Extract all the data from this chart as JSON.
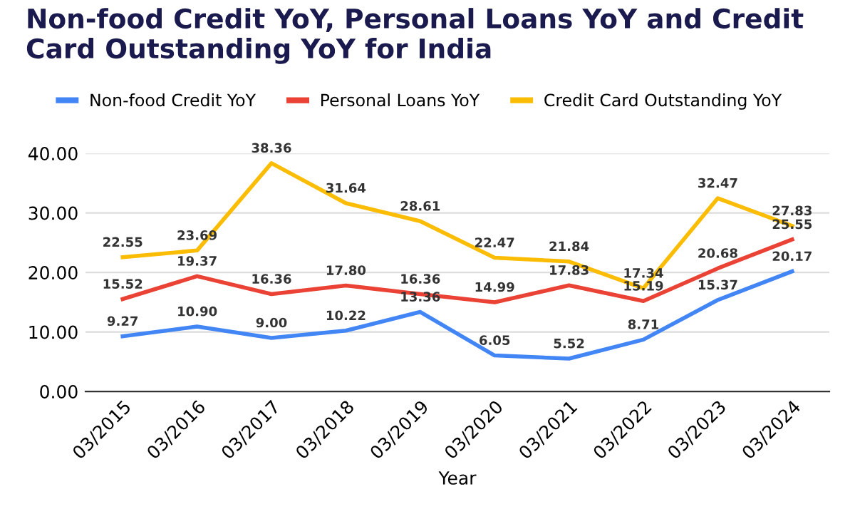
{
  "chart_data": {
    "type": "line",
    "title": "Non-food Credit YoY, Personal Loans YoY and Credit Card Outstanding YoY for India",
    "xlabel": "Year",
    "categories": [
      "03/2015",
      "03/2016",
      "03/2017",
      "03/2018",
      "03/2019",
      "03/2020",
      "03/2021",
      "03/2022",
      "03/2023",
      "03/2024"
    ],
    "series": [
      {
        "name": "Non-food Credit YoY",
        "color": "#4285f4",
        "values": [
          9.27,
          10.9,
          9.0,
          10.22,
          13.36,
          6.05,
          5.52,
          8.71,
          15.37,
          20.17
        ],
        "value_labels": [
          "9.27",
          "10.90",
          "9.00",
          "10.22",
          "13.36",
          "6.05",
          "5.52",
          "8.71",
          "15.37",
          "20.17"
        ]
      },
      {
        "name": "Personal Loans YoY",
        "color": "#ea4335",
        "values": [
          15.52,
          19.37,
          16.36,
          17.8,
          16.36,
          14.99,
          17.83,
          15.19,
          20.68,
          25.55
        ],
        "value_labels": [
          "15.52",
          "19.37",
          "16.36",
          "17.80",
          "16.36",
          "14.99",
          "17.83",
          "15.19",
          "20.68",
          "25.55"
        ]
      },
      {
        "name": "Credit Card Outstanding YoY",
        "color": "#fbbc04",
        "values": [
          22.55,
          23.69,
          38.36,
          31.64,
          28.61,
          22.47,
          21.84,
          17.34,
          32.47,
          27.83
        ],
        "value_labels": [
          "22.55",
          "23.69",
          "38.36",
          "31.64",
          "28.61",
          "22.47",
          "21.84",
          "17.34",
          "32.47",
          "27.83"
        ]
      }
    ],
    "ylim": [
      0,
      40
    ],
    "yticks": [
      {
        "value": 0,
        "label": "0.00"
      },
      {
        "value": 10,
        "label": "10.00"
      },
      {
        "value": 20,
        "label": "20.00"
      },
      {
        "value": 30,
        "label": "30.00"
      },
      {
        "value": 40,
        "label": "40.00"
      }
    ],
    "grid": "y",
    "legend": "top",
    "marker": "none",
    "line_style": "solid"
  }
}
